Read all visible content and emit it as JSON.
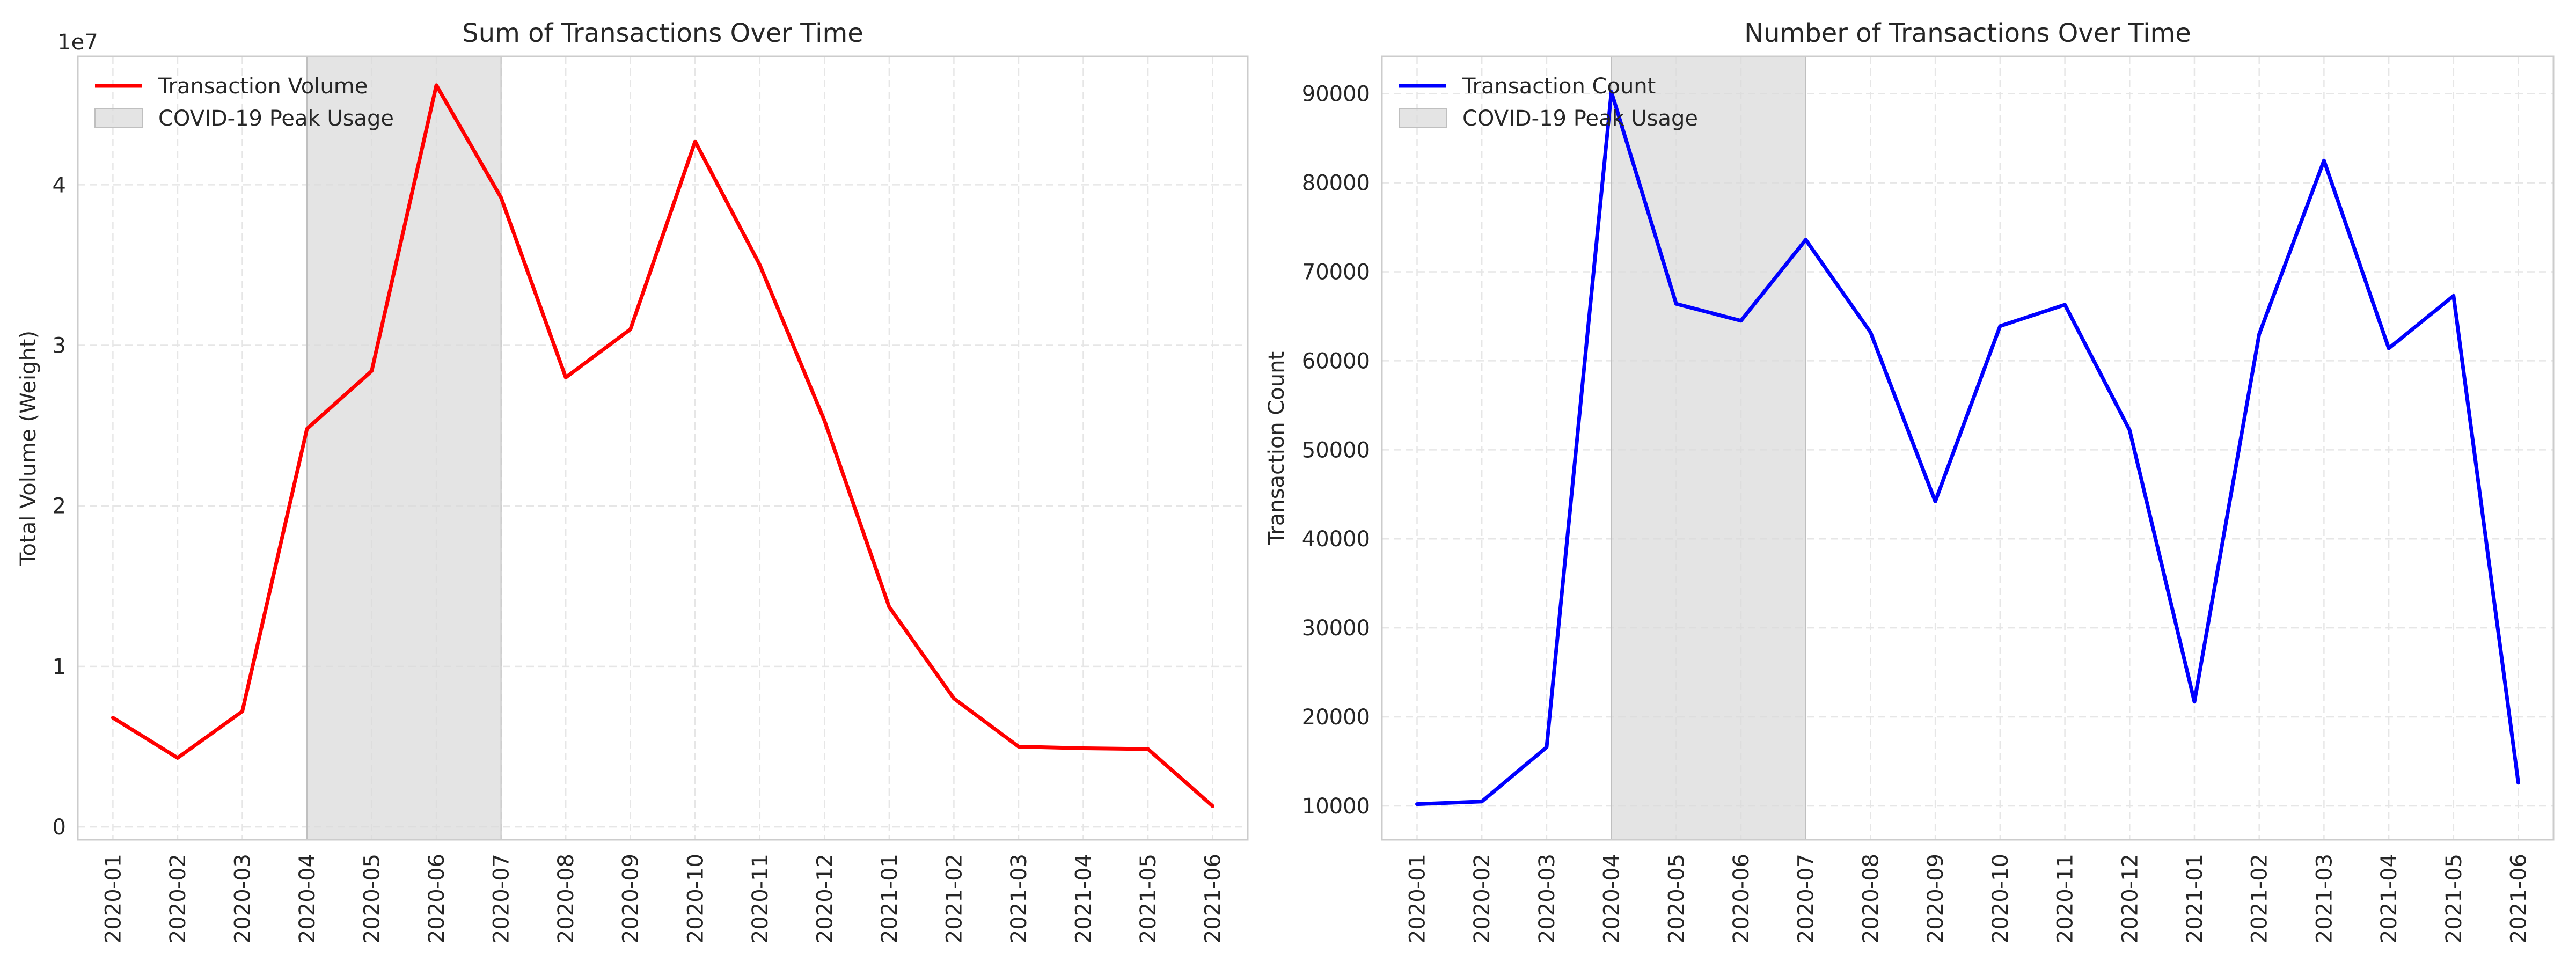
{
  "chart_data": [
    {
      "type": "line",
      "title": "Sum of Transactions Over Time",
      "xlabel": "",
      "ylabel": "Total Volume (Weight)",
      "y_offset_label": "1e7",
      "categories": [
        "2020-01",
        "2020-02",
        "2020-03",
        "2020-04",
        "2020-05",
        "2020-06",
        "2020-07",
        "2020-08",
        "2020-09",
        "2020-10",
        "2020-11",
        "2020-12",
        "2021-01",
        "2021-02",
        "2021-03",
        "2021-04",
        "2021-05",
        "2021-06"
      ],
      "series": [
        {
          "name": "Transaction Volume",
          "color": "#ff0000",
          "values": [
            6800000,
            4300000,
            7200000,
            24800000,
            28400000,
            46200000,
            39200000,
            28000000,
            31000000,
            42700000,
            35000000,
            25300000,
            13700000,
            8000000,
            5000000,
            4900000,
            4850000,
            1300000
          ]
        }
      ],
      "shaded_region": {
        "label": "COVID-19 Peak Usage",
        "from": "2020-04",
        "to": "2020-07",
        "color": "#d9d9d9"
      },
      "ylim": [
        -800000,
        48000000
      ],
      "yticks": [
        0,
        10000000,
        20000000,
        30000000,
        40000000
      ],
      "ytick_labels": [
        "0",
        "1",
        "2",
        "3",
        "4"
      ],
      "grid": true,
      "legend_position": "top-left"
    },
    {
      "type": "line",
      "title": "Number of Transactions Over Time",
      "xlabel": "",
      "ylabel": "Transaction Count",
      "categories": [
        "2020-01",
        "2020-02",
        "2020-03",
        "2020-04",
        "2020-05",
        "2020-06",
        "2020-07",
        "2020-08",
        "2020-09",
        "2020-10",
        "2020-11",
        "2020-12",
        "2021-01",
        "2021-02",
        "2021-03",
        "2021-04",
        "2021-05",
        "2021-06"
      ],
      "series": [
        {
          "name": "Transaction Count",
          "color": "#0000ff",
          "values": [
            10200,
            10500,
            16600,
            90200,
            66400,
            64500,
            73600,
            63200,
            44200,
            63900,
            66300,
            52200,
            21700,
            63000,
            82500,
            61400,
            67300,
            12600
          ]
        }
      ],
      "shaded_region": {
        "label": "COVID-19 Peak Usage",
        "from": "2020-04",
        "to": "2020-07",
        "color": "#d9d9d9"
      },
      "ylim": [
        6200,
        94200
      ],
      "yticks": [
        10000,
        20000,
        30000,
        40000,
        50000,
        60000,
        70000,
        80000,
        90000
      ],
      "ytick_labels": [
        "10000",
        "20000",
        "30000",
        "40000",
        "50000",
        "60000",
        "70000",
        "80000",
        "90000"
      ],
      "grid": true,
      "legend_position": "top-left"
    }
  ]
}
